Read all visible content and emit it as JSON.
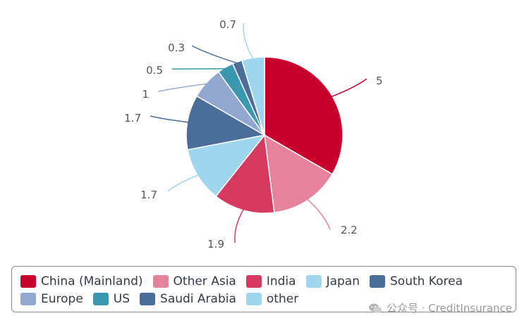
{
  "chart_data": {
    "type": "pie",
    "categories": [
      "China (Mainland)",
      "Other Asia",
      "India",
      "Japan",
      "South Korea",
      "Europe",
      "US",
      "Saudi Arabia",
      "other"
    ],
    "values": [
      5,
      2.2,
      1.9,
      1.7,
      1.7,
      1,
      0.5,
      0.3,
      0.7
    ],
    "data_labels": [
      "5",
      "2.2",
      "1.9",
      "1.7",
      "1.7",
      "1",
      "0.5",
      "0.3",
      "0.7"
    ],
    "colors": [
      "#c8002e",
      "#e6829b",
      "#d63a61",
      "#9fd6ee",
      "#4a6d99",
      "#93a8d1",
      "#3a97ad",
      "#4a6d99",
      "#9fd6ee"
    ],
    "legend_placement": "bottom",
    "title": ""
  },
  "watermark": {
    "text": "公众号 · CreditInsurance",
    "icon": "wechat-icon"
  }
}
